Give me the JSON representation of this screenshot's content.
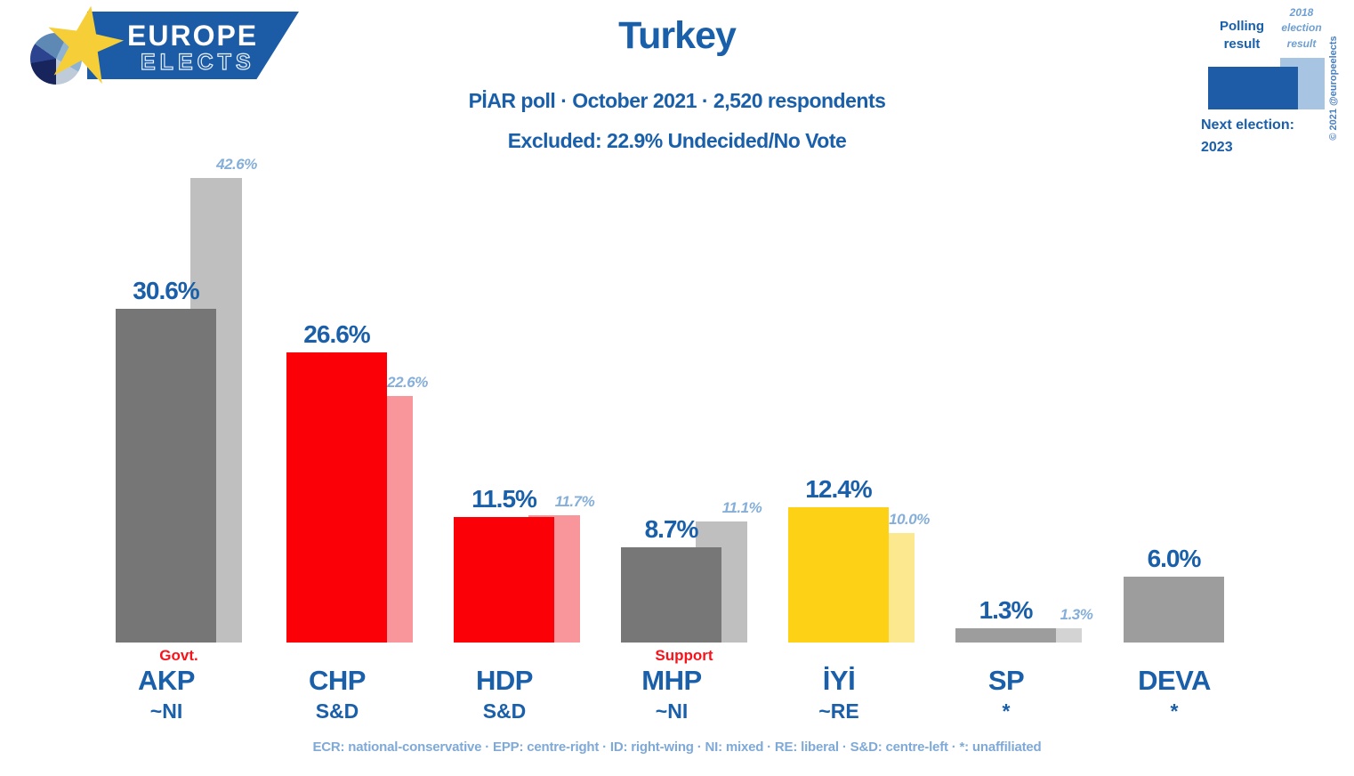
{
  "logo": {
    "line1": "EUROPE",
    "line2": "ELECTS"
  },
  "header": {
    "title": "Turkey",
    "subtitle": "PİAR poll · October 2021 · 2,520 respondents",
    "excluded": "Excluded: 22.9% Undecided/No Vote"
  },
  "legend": {
    "polling_label": "Polling result",
    "election_label": "2018 election result",
    "next_election_label": "Next election:",
    "next_election_year": "2023",
    "copyright": "© 2021 @europeelects",
    "polling_bar_color": "#1E5CA8",
    "election_bar_color": "#A7C4E2"
  },
  "colors": {
    "primary_blue": "#1A5FA9",
    "light_blue": "#85AFD9",
    "annotation_red": "#F8131B"
  },
  "parties": [
    {
      "name": "AKP",
      "eu_group": "~NI",
      "annotation": "Govt.",
      "poll_label": "30.6%",
      "poll_value": 30.6,
      "poll_color": "#767676",
      "election_label": "42.6%",
      "election_value": 42.6,
      "election_color": "#BFBFBF"
    },
    {
      "name": "CHP",
      "eu_group": "S&D",
      "annotation": "",
      "poll_label": "26.6%",
      "poll_value": 26.6,
      "poll_color": "#FB0006",
      "election_label": "22.6%",
      "election_value": 22.6,
      "election_color": "#F9969C"
    },
    {
      "name": "HDP",
      "eu_group": "S&D",
      "annotation": "",
      "poll_label": "11.5%",
      "poll_value": 11.5,
      "poll_color": "#FB0006",
      "election_label": "11.7%",
      "election_value": 11.7,
      "election_color": "#F9969C"
    },
    {
      "name": "MHP",
      "eu_group": "~NI",
      "annotation": "Support",
      "poll_label": "8.7%",
      "poll_value": 8.7,
      "poll_color": "#777777",
      "election_label": "11.1%",
      "election_value": 11.1,
      "election_color": "#BFBFBF"
    },
    {
      "name": "İYİ",
      "eu_group": "~RE",
      "annotation": "",
      "poll_label": "12.4%",
      "poll_value": 12.4,
      "poll_color": "#FCD116",
      "election_label": "10.0%",
      "election_value": 10.0,
      "election_color": "#FCE98F"
    },
    {
      "name": "SP",
      "eu_group": "*",
      "annotation": "",
      "poll_label": "1.3%",
      "poll_value": 1.3,
      "poll_color": "#9D9D9D",
      "election_label": "1.3%",
      "election_value": 1.3,
      "election_color": "#D3D3D3"
    },
    {
      "name": "DEVA",
      "eu_group": "*",
      "annotation": "",
      "poll_label": "6.0%",
      "poll_value": 6.0,
      "poll_color": "#9D9D9D",
      "election_label": null,
      "election_value": null,
      "election_color": null
    }
  ],
  "footer": "ECR: national-conservative · EPP: centre-right · ID: right-wing · NI: mixed · RE: liberal · S&D: centre-left · *: unaffiliated",
  "chart_data": {
    "type": "bar",
    "title": "Turkey",
    "subtitle": "PİAR poll · October 2021 · 2,520 respondents",
    "note": "Excluded: 22.9% Undecided/No Vote",
    "categories": [
      "AKP",
      "CHP",
      "HDP",
      "MHP",
      "İYİ",
      "SP",
      "DEVA"
    ],
    "series": [
      {
        "name": "Polling result",
        "values": [
          30.6,
          26.6,
          11.5,
          8.7,
          12.4,
          1.3,
          6.0
        ]
      },
      {
        "name": "2018 election result",
        "values": [
          42.6,
          22.6,
          11.7,
          11.1,
          10.0,
          1.3,
          null
        ]
      }
    ],
    "category_groups": [
      "~NI",
      "S&D",
      "S&D",
      "~NI",
      "~RE",
      "*",
      "*"
    ],
    "annotations": {
      "AKP": "Govt.",
      "MHP": "Support"
    },
    "ylim": [
      0,
      45
    ],
    "grid": false,
    "legend_position": "top-right",
    "value_labels": true,
    "next_election": "2023"
  }
}
